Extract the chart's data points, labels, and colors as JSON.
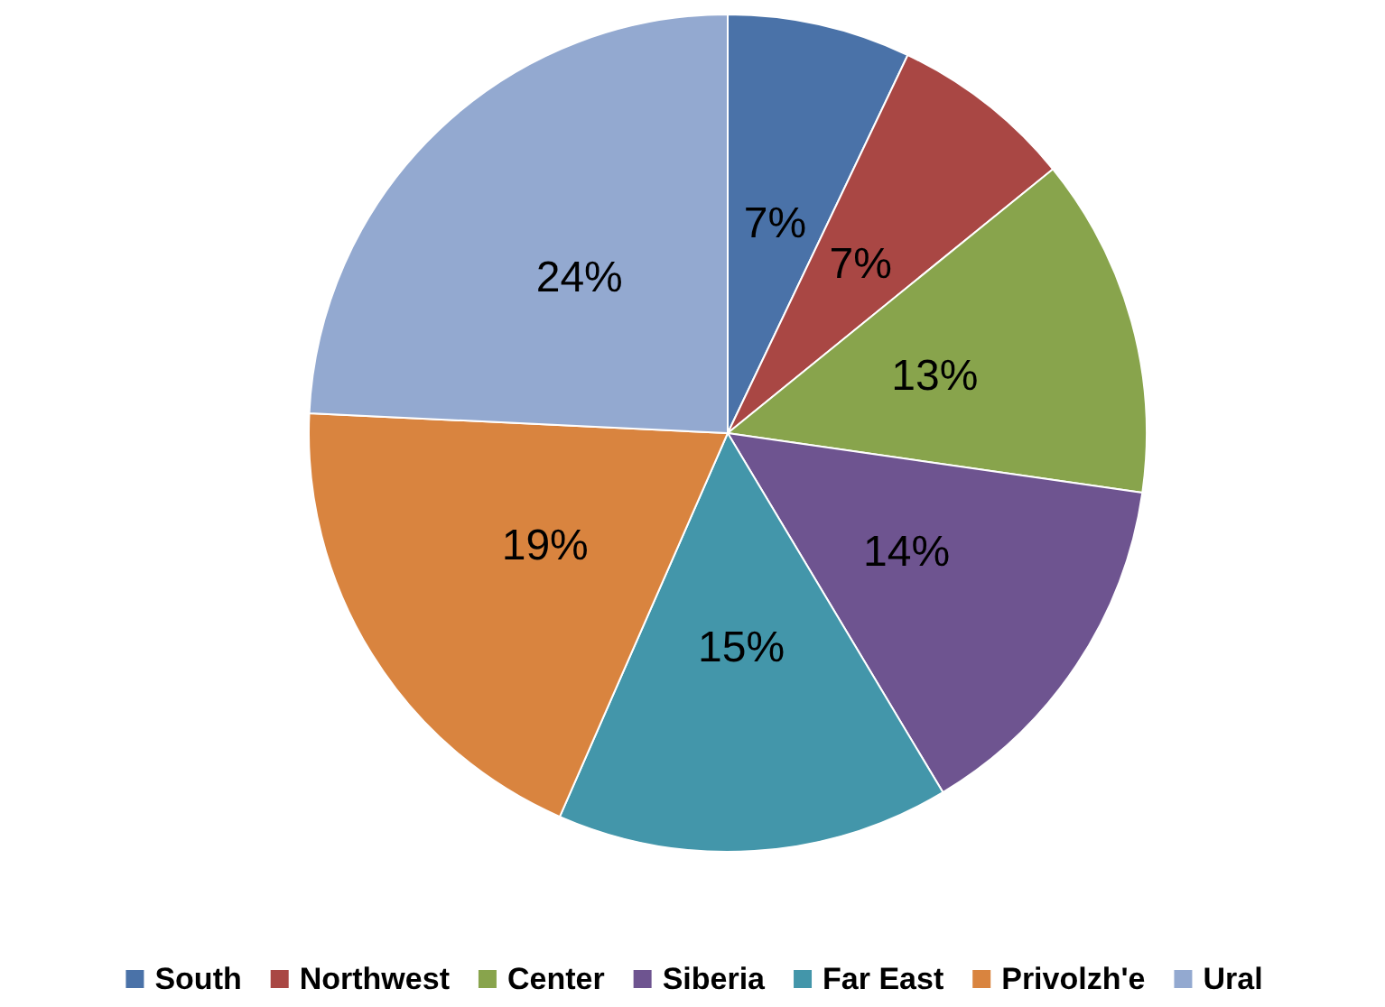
{
  "chart_data": {
    "type": "pie",
    "categories": [
      "South",
      "Northwest",
      "Center",
      "Siberia",
      "Far East",
      "Privolzh'e",
      "Ural"
    ],
    "values": [
      7,
      7,
      13,
      14,
      15,
      19,
      24
    ],
    "colors": [
      "#4a72a8",
      "#a94744",
      "#88a44c",
      "#6e5490",
      "#4396aa",
      "#d9843f",
      "#93a9d0"
    ],
    "value_labels": [
      "7%",
      "7%",
      "13%",
      "14%",
      "15%",
      "19%",
      "24%"
    ],
    "legend": "bottom"
  }
}
